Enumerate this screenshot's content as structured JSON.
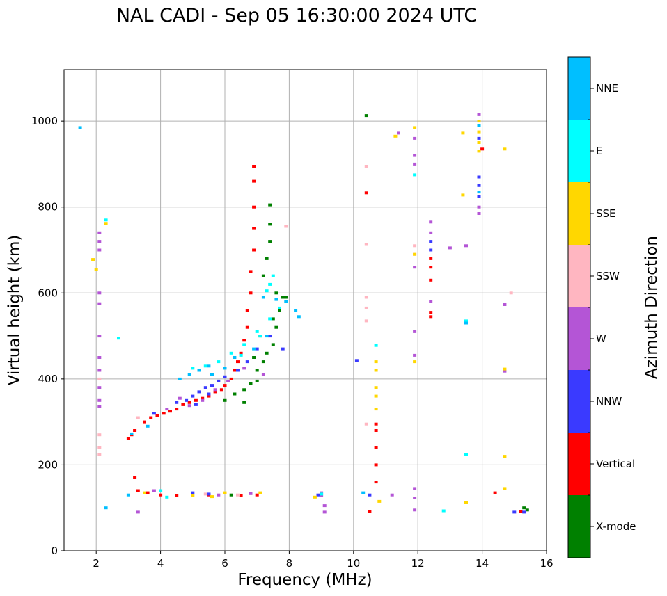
{
  "chart_data": {
    "type": "scatter",
    "title": "NAL CADI - Sep 05 16:30:00 2024 UTC",
    "xlabel": "Frequency (MHz)",
    "ylabel": "Virtual height (km)",
    "xlim": [
      1,
      16
    ],
    "ylim": [
      0,
      1120
    ],
    "xticks": [
      2,
      4,
      6,
      8,
      10,
      12,
      14,
      16
    ],
    "yticks": [
      0,
      200,
      400,
      600,
      800,
      1000
    ],
    "grid": true,
    "colorbar": {
      "title": "Azimuth Direction",
      "categories": [
        {
          "name": "X-mode",
          "color": "#008000"
        },
        {
          "name": "Vertical",
          "color": "#ff0000"
        },
        {
          "name": "NNW",
          "color": "#3a3aff"
        },
        {
          "name": "W",
          "color": "#b455d6"
        },
        {
          "name": "SSW",
          "color": "#ffb6c1"
        },
        {
          "name": "SSE",
          "color": "#ffd700"
        },
        {
          "name": "E",
          "color": "#00ffff"
        },
        {
          "name": "NNE",
          "color": "#00bfff"
        }
      ]
    },
    "series": [
      {
        "name": "Vertical",
        "points": [
          [
            3.0,
            262
          ],
          [
            3.1,
            270
          ],
          [
            3.2,
            280
          ],
          [
            3.5,
            300
          ],
          [
            3.7,
            310
          ],
          [
            3.9,
            315
          ],
          [
            4.1,
            320
          ],
          [
            4.3,
            325
          ],
          [
            4.5,
            330
          ],
          [
            4.7,
            340
          ],
          [
            4.9,
            345
          ],
          [
            5.1,
            350
          ],
          [
            5.3,
            355
          ],
          [
            5.5,
            360
          ],
          [
            5.7,
            370
          ],
          [
            5.9,
            375
          ],
          [
            6.0,
            385
          ],
          [
            6.2,
            400
          ],
          [
            6.3,
            420
          ],
          [
            6.4,
            440
          ],
          [
            6.5,
            460
          ],
          [
            6.6,
            490
          ],
          [
            6.7,
            520
          ],
          [
            6.7,
            560
          ],
          [
            6.8,
            600
          ],
          [
            6.8,
            650
          ],
          [
            6.9,
            700
          ],
          [
            6.9,
            750
          ],
          [
            6.9,
            800
          ],
          [
            6.9,
            860
          ],
          [
            6.9,
            895
          ],
          [
            3.3,
            140
          ],
          [
            3.6,
            135
          ],
          [
            4.0,
            130
          ],
          [
            4.5,
            128
          ],
          [
            5.5,
            130
          ],
          [
            6.5,
            128
          ],
          [
            7.0,
            130
          ],
          [
            10.4,
            833
          ],
          [
            10.7,
            160
          ],
          [
            10.7,
            200
          ],
          [
            10.7,
            240
          ],
          [
            10.7,
            280
          ],
          [
            10.7,
            295
          ],
          [
            12.4,
            630
          ],
          [
            12.4,
            660
          ],
          [
            12.4,
            680
          ],
          [
            12.4,
            545
          ],
          [
            12.4,
            555
          ],
          [
            14.0,
            935
          ],
          [
            14.4,
            135
          ],
          [
            15.2,
            92
          ],
          [
            10.5,
            92
          ],
          [
            3.2,
            170
          ]
        ]
      },
      {
        "name": "X-mode",
        "points": [
          [
            6.0,
            350
          ],
          [
            6.3,
            365
          ],
          [
            6.6,
            375
          ],
          [
            6.8,
            390
          ],
          [
            7.0,
            420
          ],
          [
            7.2,
            440
          ],
          [
            7.3,
            460
          ],
          [
            7.5,
            480
          ],
          [
            7.6,
            520
          ],
          [
            7.7,
            560
          ],
          [
            7.6,
            600
          ],
          [
            7.8,
            590
          ],
          [
            7.2,
            640
          ],
          [
            7.3,
            680
          ],
          [
            7.4,
            720
          ],
          [
            7.4,
            760
          ],
          [
            7.4,
            805
          ],
          [
            6.6,
            345
          ],
          [
            7.0,
            395
          ],
          [
            6.9,
            450
          ],
          [
            7.1,
            500
          ],
          [
            7.5,
            540
          ],
          [
            7.9,
            590
          ],
          [
            10.4,
            1013
          ],
          [
            15.3,
            100
          ],
          [
            15.4,
            95
          ],
          [
            6.2,
            130
          ]
        ]
      },
      {
        "name": "NNW",
        "points": [
          [
            4.5,
            345
          ],
          [
            4.8,
            350
          ],
          [
            5.0,
            360
          ],
          [
            5.2,
            370
          ],
          [
            5.4,
            380
          ],
          [
            5.6,
            385
          ],
          [
            5.8,
            395
          ],
          [
            6.0,
            405
          ],
          [
            5.1,
            340
          ],
          [
            5.5,
            365
          ],
          [
            6.4,
            420
          ],
          [
            6.7,
            440
          ],
          [
            7.0,
            470
          ],
          [
            7.4,
            500
          ],
          [
            7.8,
            470
          ],
          [
            5.0,
            135
          ],
          [
            5.5,
            132
          ],
          [
            8.9,
            130
          ],
          [
            10.1,
            443
          ],
          [
            10.5,
            130
          ],
          [
            12.4,
            700
          ],
          [
            12.4,
            720
          ],
          [
            13.9,
            825
          ],
          [
            13.9,
            850
          ],
          [
            13.9,
            870
          ],
          [
            13.9,
            960
          ],
          [
            15.0,
            90
          ],
          [
            15.3,
            90
          ],
          [
            3.8,
            320
          ]
        ]
      },
      {
        "name": "W",
        "points": [
          [
            4.2,
            330
          ],
          [
            4.6,
            355
          ],
          [
            4.9,
            338
          ],
          [
            5.3,
            350
          ],
          [
            5.7,
            375
          ],
          [
            6.1,
            395
          ],
          [
            6.6,
            425
          ],
          [
            7.2,
            410
          ],
          [
            5.8,
            130
          ],
          [
            6.8,
            133
          ],
          [
            9.0,
            135
          ],
          [
            9.0,
            128
          ],
          [
            9.1,
            105
          ],
          [
            9.1,
            90
          ],
          [
            11.2,
            130
          ],
          [
            11.4,
            972
          ],
          [
            11.9,
            960
          ],
          [
            11.9,
            920
          ],
          [
            11.9,
            900
          ],
          [
            11.9,
            660
          ],
          [
            11.9,
            510
          ],
          [
            11.9,
            455
          ],
          [
            11.9,
            145
          ],
          [
            11.9,
            123
          ],
          [
            11.9,
            95
          ],
          [
            12.4,
            580
          ],
          [
            12.4,
            740
          ],
          [
            12.4,
            765
          ],
          [
            13.0,
            705
          ],
          [
            13.5,
            710
          ],
          [
            13.9,
            1015
          ],
          [
            13.9,
            800
          ],
          [
            13.9,
            785
          ],
          [
            14.7,
            573
          ],
          [
            14.7,
            418
          ],
          [
            2.1,
            740
          ],
          [
            2.1,
            720
          ],
          [
            2.1,
            700
          ],
          [
            2.1,
            600
          ],
          [
            2.1,
            575
          ],
          [
            2.1,
            500
          ],
          [
            2.1,
            450
          ],
          [
            2.1,
            420
          ],
          [
            2.1,
            380
          ],
          [
            2.1,
            350
          ],
          [
            2.1,
            335
          ],
          [
            3.3,
            90
          ],
          [
            3.8,
            140
          ]
        ]
      },
      {
        "name": "SSW",
        "points": [
          [
            5.4,
            132
          ],
          [
            6.4,
            130
          ],
          [
            7.9,
            755
          ],
          [
            10.4,
            895
          ],
          [
            10.4,
            713
          ],
          [
            10.4,
            590
          ],
          [
            10.4,
            565
          ],
          [
            10.4,
            535
          ],
          [
            10.4,
            295
          ],
          [
            11.9,
            690
          ],
          [
            11.9,
            710
          ],
          [
            14.9,
            600
          ],
          [
            2.1,
            400
          ],
          [
            2.1,
            270
          ],
          [
            2.1,
            240
          ],
          [
            2.1,
            225
          ],
          [
            3.3,
            310
          ]
        ]
      },
      {
        "name": "SSE",
        "points": [
          [
            5.0,
            128
          ],
          [
            5.6,
            126
          ],
          [
            6.0,
            135
          ],
          [
            7.1,
            135
          ],
          [
            10.7,
            330
          ],
          [
            10.7,
            360
          ],
          [
            10.7,
            380
          ],
          [
            10.7,
            420
          ],
          [
            10.7,
            440
          ],
          [
            10.8,
            115
          ],
          [
            11.3,
            965
          ],
          [
            11.9,
            985
          ],
          [
            11.9,
            690
          ],
          [
            11.9,
            440
          ],
          [
            13.4,
            972
          ],
          [
            13.4,
            828
          ],
          [
            13.5,
            112
          ],
          [
            13.9,
            930
          ],
          [
            13.9,
            950
          ],
          [
            13.9,
            975
          ],
          [
            13.9,
            1000
          ],
          [
            14.7,
            935
          ],
          [
            14.7,
            423
          ],
          [
            14.7,
            220
          ],
          [
            14.7,
            145
          ],
          [
            2.3,
            762
          ],
          [
            1.9,
            678
          ],
          [
            2.0,
            655
          ],
          [
            8.8,
            125
          ],
          [
            3.5,
            135
          ]
        ]
      },
      {
        "name": "E",
        "points": [
          [
            5.0,
            425
          ],
          [
            5.4,
            430
          ],
          [
            5.8,
            440
          ],
          [
            6.2,
            460
          ],
          [
            6.6,
            480
          ],
          [
            7.0,
            510
          ],
          [
            7.4,
            540
          ],
          [
            7.7,
            565
          ],
          [
            7.4,
            620
          ],
          [
            7.5,
            640
          ],
          [
            7.3,
            605
          ],
          [
            7.1,
            500
          ],
          [
            6.5,
            455
          ],
          [
            10.7,
            478
          ],
          [
            11.9,
            875
          ],
          [
            12.8,
            93
          ],
          [
            13.5,
            225
          ],
          [
            13.5,
            535
          ],
          [
            2.3,
            770
          ],
          [
            2.7,
            495
          ],
          [
            4.0,
            140
          ],
          [
            4.2,
            125
          ],
          [
            9.0,
            132
          ]
        ]
      },
      {
        "name": "NNE",
        "points": [
          [
            3.1,
            272
          ],
          [
            3.6,
            290
          ],
          [
            4.6,
            400
          ],
          [
            4.9,
            410
          ],
          [
            5.2,
            420
          ],
          [
            5.5,
            430
          ],
          [
            5.6,
            410
          ],
          [
            6.0,
            425
          ],
          [
            6.3,
            450
          ],
          [
            6.9,
            470
          ],
          [
            7.3,
            500
          ],
          [
            7.6,
            585
          ],
          [
            7.9,
            580
          ],
          [
            8.2,
            560
          ],
          [
            8.3,
            545
          ],
          [
            7.2,
            590
          ],
          [
            1.5,
            985
          ],
          [
            2.3,
            100
          ],
          [
            3.0,
            130
          ],
          [
            13.5,
            530
          ],
          [
            13.9,
            835
          ],
          [
            13.9,
            990
          ],
          [
            10.3,
            135
          ]
        ]
      }
    ]
  }
}
